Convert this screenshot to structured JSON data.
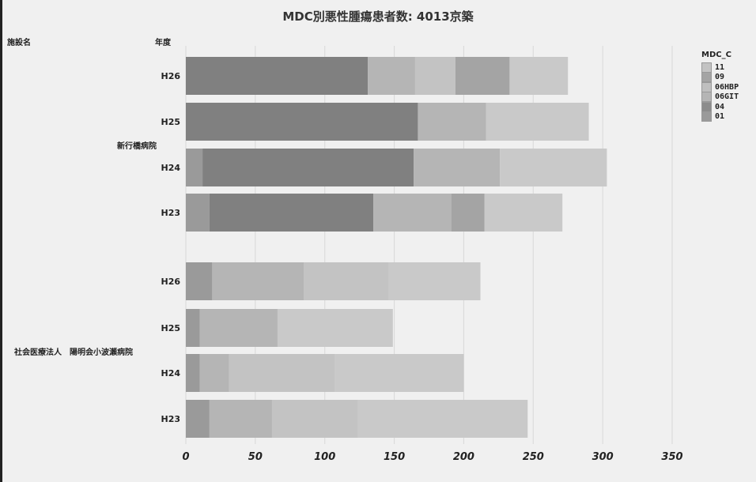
{
  "title": "MDC別悪性腫瘍患者数: 4013京築",
  "header": {
    "facility_label": "施設名",
    "year_label": "年度"
  },
  "legend": {
    "title": "MDC_C",
    "items": [
      {
        "label": "11",
        "color": "#c3c3c3"
      },
      {
        "label": "09",
        "color": "#a4a4a4"
      },
      {
        "label": "06HBP",
        "color": "#bfbfbf"
      },
      {
        "label": "06GIT",
        "color": "#b5b5b5"
      },
      {
        "label": "04",
        "color": "#8c8c8c"
      },
      {
        "label": "01",
        "color": "#9a9a9a"
      }
    ]
  },
  "chart_data": {
    "type": "bar",
    "orientation": "horizontal",
    "stacked": true,
    "title": "MDC別悪性腫瘍患者数: 4013京築",
    "xlim": [
      0,
      350
    ],
    "xticks": [
      0,
      50,
      100,
      150,
      200,
      250,
      300,
      350
    ],
    "grid": true,
    "legend_position": "right",
    "series_order": [
      "01",
      "04",
      "06GIT",
      "06HBP",
      "09",
      "11"
    ],
    "colors": {
      "01": "#9a9a9a",
      "04": "#808080",
      "06GIT": "#b5b5b5",
      "06HBP": "#c3c3c3",
      "09": "#a4a4a4",
      "11": "#c9c9c9"
    },
    "groups": [
      {
        "facility": "新行橋病院",
        "bars": [
          {
            "year": "H26",
            "values": {
              "01": 0,
              "04": 131,
              "06GIT": 34,
              "06HBP": 29,
              "09": 39,
              "11": 42
            }
          },
          {
            "year": "H25",
            "values": {
              "01": 0,
              "04": 167,
              "06GIT": 49,
              "06HBP": 0,
              "09": 0,
              "11": 74
            }
          },
          {
            "year": "H24",
            "values": {
              "01": 12,
              "04": 152,
              "06GIT": 62,
              "06HBP": 0,
              "09": 0,
              "11": 77
            }
          },
          {
            "year": "H23",
            "values": {
              "01": 17,
              "04": 118,
              "06GIT": 56,
              "06HBP": 0,
              "09": 24,
              "11": 56
            }
          }
        ]
      },
      {
        "facility": "社会医療法人　陽明会小波瀬病院",
        "bars": [
          {
            "year": "H26",
            "values": {
              "01": 19,
              "04": 0,
              "06GIT": 66,
              "06HBP": 61,
              "09": 0,
              "11": 66
            }
          },
          {
            "year": "H25",
            "values": {
              "01": 10,
              "04": 0,
              "06GIT": 56,
              "06HBP": 0,
              "09": 0,
              "11": 83
            }
          },
          {
            "year": "H24",
            "values": {
              "01": 10,
              "04": 0,
              "06GIT": 21,
              "06HBP": 76,
              "09": 0,
              "11": 93
            }
          },
          {
            "year": "H23",
            "values": {
              "01": 17,
              "04": 0,
              "06GIT": 45,
              "06HBP": 62,
              "09": 0,
              "11": 122
            }
          }
        ]
      }
    ]
  }
}
